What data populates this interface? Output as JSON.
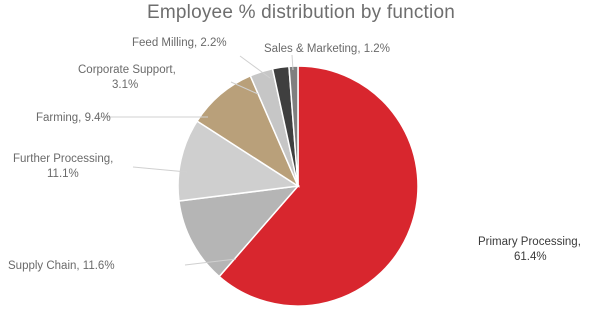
{
  "chart_data": {
    "type": "pie",
    "title": "Employee % distribution by function",
    "slices": [
      {
        "name": "Primary Processing",
        "value": 61.4,
        "label_lines": [
          "Primary Processing,",
          "61.4%"
        ],
        "color": "#d8262e"
      },
      {
        "name": "Supply Chain",
        "value": 11.6,
        "label_lines": [
          "Supply Chain, 11.6%"
        ],
        "color": "#b5b5b5"
      },
      {
        "name": "Further Processing",
        "value": 11.1,
        "label_lines": [
          "Further Processing,",
          "11.1%"
        ],
        "color": "#cfcfcf"
      },
      {
        "name": "Farming",
        "value": 9.4,
        "label_lines": [
          "Farming, 9.4%"
        ],
        "color": "#b9a07a"
      },
      {
        "name": "Corporate Support",
        "value": 3.1,
        "label_lines": [
          "Corporate Support,",
          "3.1%"
        ],
        "color": "#c6c6c6"
      },
      {
        "name": "Feed Milling",
        "value": 2.2,
        "label_lines": [
          "Feed Milling, 2.2%"
        ],
        "color": "#3f3f3f"
      },
      {
        "name": "Sales & Marketing",
        "value": 1.2,
        "label_lines": [
          "Sales & Marketing, 1.2%"
        ],
        "color": "#7f7f7f"
      }
    ]
  }
}
